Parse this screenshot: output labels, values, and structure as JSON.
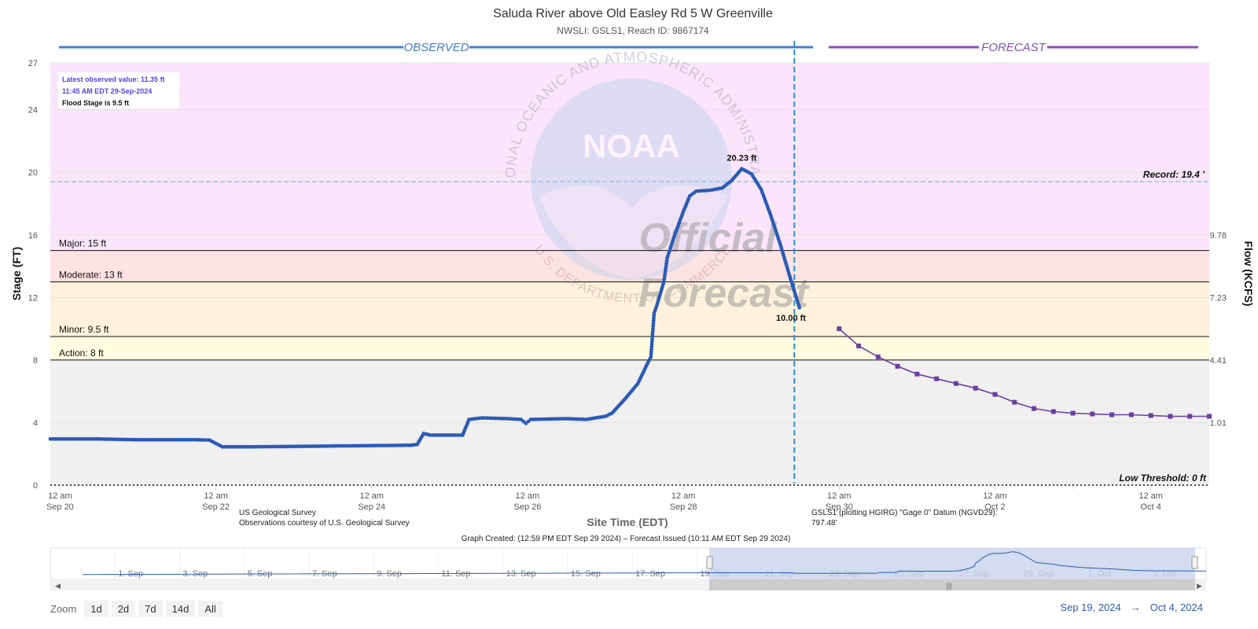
{
  "colors": {
    "observed": "#2a5bb5",
    "forecast": "#6b3fa0",
    "observed_label": "#4a7cc0",
    "forecast_label": "#8a4fb0",
    "major_band": "#fbe5fb",
    "moderate_band": "#ffe2e2",
    "minor_band": "#fff2dc",
    "action_band": "#fffde0",
    "normal_band": "#f0f0f0",
    "record_line": "#7ecff0",
    "issue_line": "#2b8fd6",
    "navigator_fill": "#c8d3ec"
  },
  "chart_data": {
    "type": "line",
    "title": "Saluda River above Old Easley Rd 5 W Greenville",
    "subtitle": "NWSLI: GSLS1, Reach ID: 9867174",
    "xlabel": "Site Time (EDT)",
    "ylabel": "Stage (FT)",
    "y2label": "Flow (KCFS)",
    "ylim": [
      0,
      27
    ],
    "y_ticks": [
      0,
      4,
      8,
      12,
      16,
      20,
      24,
      27
    ],
    "y2_ticks": [
      {
        "stage": 4,
        "label": "1.01"
      },
      {
        "stage": 8,
        "label": "4.41"
      },
      {
        "stage": 12,
        "label": "7.23"
      },
      {
        "stage": 16,
        "label": "9.78"
      }
    ],
    "x_range_days": [
      "2024-09-19T21:00",
      "2024-10-04T18:00"
    ],
    "x_ticks": [
      {
        "t": "2024-09-20T00:00",
        "line1": "12 am",
        "line2": "Sep 20"
      },
      {
        "t": "2024-09-22T00:00",
        "line1": "12 am",
        "line2": "Sep 22"
      },
      {
        "t": "2024-09-24T00:00",
        "line1": "12 am",
        "line2": "Sep 24"
      },
      {
        "t": "2024-09-26T00:00",
        "line1": "12 am",
        "line2": "Sep 26"
      },
      {
        "t": "2024-09-28T00:00",
        "line1": "12 am",
        "line2": "Sep 28"
      },
      {
        "t": "2024-09-30T00:00",
        "line1": "12 am",
        "line2": "Sep 30"
      },
      {
        "t": "2024-10-02T00:00",
        "line1": "12 am",
        "line2": "Oct 2"
      },
      {
        "t": "2024-10-04T00:00",
        "line1": "12 am",
        "line2": "Oct 4"
      }
    ],
    "section_labels": {
      "observed": "OBSERVED",
      "forecast": "FORECAST"
    },
    "forecast_issued": "2024-09-29T10:11",
    "thresholds": [
      {
        "name": "major",
        "label": "Major: 15 ft",
        "value": 15
      },
      {
        "name": "moderate",
        "label": "Moderate: 13 ft",
        "value": 13
      },
      {
        "name": "minor",
        "label": "Minor: 9.5 ft",
        "value": 9.5
      },
      {
        "name": "action",
        "label": "Action: 8 ft",
        "value": 8
      }
    ],
    "record": {
      "label": "Record: 19.4 '",
      "value": 19.4
    },
    "low_threshold": {
      "label": "Low Threshold: 0 ft",
      "value": 0
    },
    "info_box": {
      "line1": "Latest observed value: 11.35 ft",
      "line2": "11:45 AM EDT 29-Sep-2024",
      "line3": "Flood Stage is 9.5 ft"
    },
    "peak_label": {
      "text": "20.23 ft",
      "t": "2024-09-28T18:00",
      "value": 20.23
    },
    "forecast_start_label": {
      "text": "10.00 ft",
      "t": "2024-09-29T14:00",
      "value": 10.0
    },
    "observed": {
      "name": "Observed",
      "points": [
        [
          "2024-09-19T21:00",
          2.95
        ],
        [
          "2024-09-20T12:00",
          2.95
        ],
        [
          "2024-09-21T00:00",
          2.9
        ],
        [
          "2024-09-21T18:00",
          2.9
        ],
        [
          "2024-09-21T22:00",
          2.88
        ],
        [
          "2024-09-22T02:00",
          2.45
        ],
        [
          "2024-09-22T12:00",
          2.45
        ],
        [
          "2024-09-23T12:00",
          2.5
        ],
        [
          "2024-09-24T12:00",
          2.55
        ],
        [
          "2024-09-24T14:00",
          2.6
        ],
        [
          "2024-09-24T16:00",
          3.3
        ],
        [
          "2024-09-24T18:00",
          3.2
        ],
        [
          "2024-09-25T04:00",
          3.2
        ],
        [
          "2024-09-25T06:00",
          4.2
        ],
        [
          "2024-09-25T10:00",
          4.3
        ],
        [
          "2024-09-25T18:00",
          4.25
        ],
        [
          "2024-09-25T22:00",
          4.2
        ],
        [
          "2024-09-25T23:30",
          3.95
        ],
        [
          "2024-09-26T01:00",
          4.2
        ],
        [
          "2024-09-26T12:00",
          4.25
        ],
        [
          "2024-09-26T18:00",
          4.2
        ],
        [
          "2024-09-27T00:00",
          4.4
        ],
        [
          "2024-09-27T02:00",
          4.6
        ],
        [
          "2024-09-27T06:00",
          5.5
        ],
        [
          "2024-09-27T10:00",
          6.5
        ],
        [
          "2024-09-27T13:00",
          7.8
        ],
        [
          "2024-09-27T14:00",
          8.2
        ],
        [
          "2024-09-27T15:00",
          11.0
        ],
        [
          "2024-09-27T16:00",
          11.6
        ],
        [
          "2024-09-27T18:00",
          13.0
        ],
        [
          "2024-09-27T19:00",
          14.5
        ],
        [
          "2024-09-27T21:00",
          15.8
        ],
        [
          "2024-09-28T00:00",
          17.5
        ],
        [
          "2024-09-28T02:00",
          18.5
        ],
        [
          "2024-09-28T04:00",
          18.8
        ],
        [
          "2024-09-28T08:00",
          18.85
        ],
        [
          "2024-09-28T12:00",
          19.0
        ],
        [
          "2024-09-28T15:00",
          19.5
        ],
        [
          "2024-09-28T18:00",
          20.23
        ],
        [
          "2024-09-28T21:00",
          19.9
        ],
        [
          "2024-09-29T00:00",
          18.9
        ],
        [
          "2024-09-29T03:00",
          17.2
        ],
        [
          "2024-09-29T06:00",
          15.3
        ],
        [
          "2024-09-29T09:00",
          13.2
        ],
        [
          "2024-09-29T11:45",
          11.35
        ]
      ]
    },
    "forecast": {
      "name": "Forecast",
      "points": [
        [
          "2024-09-30T00:00",
          10.0
        ],
        [
          "2024-09-30T06:00",
          8.9
        ],
        [
          "2024-09-30T12:00",
          8.2
        ],
        [
          "2024-09-30T18:00",
          7.6
        ],
        [
          "2024-10-01T00:00",
          7.1
        ],
        [
          "2024-10-01T06:00",
          6.8
        ],
        [
          "2024-10-01T12:00",
          6.5
        ],
        [
          "2024-10-01T18:00",
          6.2
        ],
        [
          "2024-10-02T00:00",
          5.8
        ],
        [
          "2024-10-02T06:00",
          5.3
        ],
        [
          "2024-10-02T12:00",
          4.9
        ],
        [
          "2024-10-02T18:00",
          4.7
        ],
        [
          "2024-10-03T00:00",
          4.6
        ],
        [
          "2024-10-03T06:00",
          4.55
        ],
        [
          "2024-10-03T12:00",
          4.5
        ],
        [
          "2024-10-03T18:00",
          4.5
        ],
        [
          "2024-10-04T00:00",
          4.45
        ],
        [
          "2024-10-04T06:00",
          4.4
        ],
        [
          "2024-10-04T12:00",
          4.4
        ],
        [
          "2024-10-04T18:00",
          4.4
        ]
      ]
    }
  },
  "credits": {
    "usgs_line1": "US Geological Survey",
    "usgs_line2": "Observations courtesy of U.S. Geological Survey",
    "datum_line1": "GSLS1 (plotting HGIRG) \"Gage 0\" Datum (NGVD29):",
    "datum_line2": "797.48'",
    "graph_created": "Graph Created: (12:59 PM EDT Sep 29 2024) – Forecast Issued (10:11 AM EDT Sep 29 2024)"
  },
  "watermark": {
    "agency_text": "NATIONAL OCEANIC AND ATMOSPHERIC ADMINISTRATION",
    "dept_text": "U.S. DEPARTMENT OF COMMERCE",
    "logo_text": "NOAA",
    "official_text": "Official",
    "forecast_text": "Forecast"
  },
  "navigator": {
    "labels": [
      "1. Sep",
      "3. Sep",
      "5. Sep",
      "7. Sep",
      "9. Sep",
      "11. Sep",
      "13. Sep",
      "15. Sep",
      "17. Sep",
      "19. Sep",
      "21. Sep",
      "23. Sep",
      "25. Sep",
      "27. Sep",
      "29. Sep",
      "1. Oct",
      "3. Oct"
    ]
  },
  "zoom": {
    "label": "Zoom",
    "buttons": [
      "1d",
      "2d",
      "7d",
      "14d",
      "All"
    ]
  },
  "date_range": {
    "from": "Sep 19, 2024",
    "arrow": "→",
    "to": "Oct 4, 2024"
  }
}
